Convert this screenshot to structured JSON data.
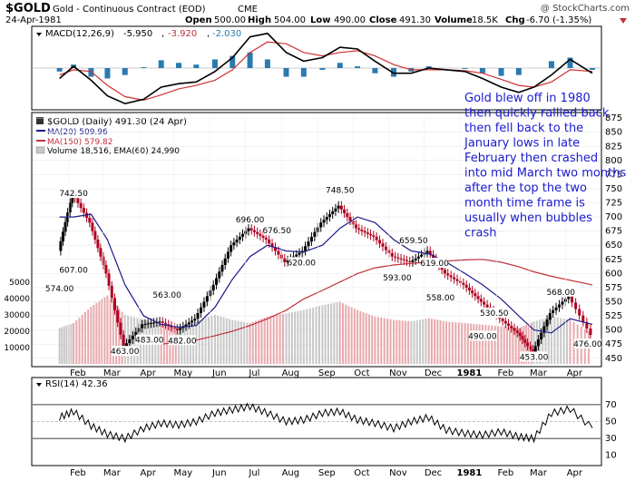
{
  "header": {
    "symbol": "$GOLD",
    "name": "Gold - Continuous Contract (EOD)",
    "exchange": "CME",
    "watermark": "@ StockCharts.com",
    "date": "24-Apr-1981",
    "open_label": "Open",
    "open": "500.00",
    "high_label": "High",
    "high": "504.00",
    "low_label": "Low",
    "low": "490.00",
    "close_label": "Close",
    "close": "491.30",
    "volume_label": "Volume",
    "volume": "18.5K",
    "chg_label": "Chg",
    "chg": "-6.70 (-1.35%)"
  },
  "colors": {
    "ma20": "#1c1c8c",
    "ma150": "#c0303a",
    "annotation": "#1a1ad0",
    "volume_up": "#c8c8c8",
    "volume_down": "#e8a9ae",
    "macd_hist": "#2a7ab0"
  },
  "chart_data": [
    {
      "type": "line",
      "name": "macd-panel",
      "label_prefix": "MACD(12,26,9)",
      "label_macd": "-5.950",
      "label_signal": "-3.920",
      "label_hist": "-2.030",
      "x": [
        "1980-01-24",
        "1980-02-05",
        "1980-02-20",
        "1980-03-05",
        "1980-03-20",
        "1980-04-05",
        "1980-04-20",
        "1980-05-05",
        "1980-05-20",
        "1980-06-05",
        "1980-06-20",
        "1980-07-05",
        "1980-07-20",
        "1980-08-05",
        "1980-08-20",
        "1980-09-05",
        "1980-09-20",
        "1980-10-05",
        "1980-10-20",
        "1980-11-05",
        "1980-11-20",
        "1980-12-05",
        "1980-12-20",
        "1981-01-05",
        "1981-01-20",
        "1981-02-05",
        "1981-02-20",
        "1981-03-05",
        "1981-03-20",
        "1981-04-05",
        "1981-04-24"
      ],
      "macd": [
        -12,
        2,
        -14,
        -32,
        -41,
        -36,
        -22,
        -18,
        -16,
        -4,
        12,
        36,
        40,
        18,
        8,
        12,
        24,
        22,
        8,
        -6,
        -6,
        0,
        -2,
        -4,
        -12,
        -22,
        -28,
        -22,
        -8,
        10,
        -5.95
      ],
      "signal": [
        -8,
        -2,
        -4,
        -20,
        -33,
        -37,
        -31,
        -24,
        -20,
        -14,
        -2,
        18,
        30,
        28,
        18,
        14,
        18,
        20,
        14,
        4,
        -2,
        -2,
        -2,
        -3,
        -6,
        -13,
        -20,
        -22,
        -16,
        -2,
        -3.92
      ],
      "hist": [
        -4,
        4,
        -10,
        -12,
        -8,
        1,
        9,
        6,
        4,
        10,
        14,
        18,
        10,
        -10,
        -10,
        -2,
        6,
        2,
        -6,
        -10,
        -4,
        2,
        0,
        -1,
        -6,
        -9,
        -8,
        0,
        8,
        12,
        -2.03
      ],
      "ylim": [
        -45,
        45
      ]
    },
    {
      "type": "line",
      "name": "price-panel",
      "title": "$GOLD (Daily) 491.30 (24 Apr)",
      "legend": [
        {
          "label": "MA(20) 509.96",
          "series": "ma20"
        },
        {
          "label": "MA(150) 579.82",
          "series": "ma150"
        },
        {
          "label": "Volume 18,516, EMA(60) 24,990",
          "series": "volume"
        }
      ],
      "x_ticks": [
        "Feb",
        "Mar",
        "Apr",
        "May",
        "Jun",
        "Jul",
        "Aug",
        "Sep",
        "Oct",
        "Nov",
        "Dec",
        "1981",
        "Feb",
        "Mar",
        "Apr"
      ],
      "y_ticks": [
        450,
        475,
        500,
        525,
        550,
        575,
        600,
        625,
        650,
        675,
        700,
        725,
        750,
        775,
        800,
        825,
        850,
        875
      ],
      "volume_ticks": [
        "5000",
        "40000",
        "30000",
        "20000",
        "10000"
      ],
      "ylim": [
        440,
        880
      ],
      "x": [
        "1980-01-24",
        "1980-02-05",
        "1980-02-20",
        "1980-03-05",
        "1980-03-20",
        "1980-04-05",
        "1980-04-20",
        "1980-05-05",
        "1980-05-20",
        "1980-06-05",
        "1980-06-20",
        "1980-07-05",
        "1980-07-20",
        "1980-08-05",
        "1980-08-20",
        "1980-09-05",
        "1980-09-20",
        "1980-10-05",
        "1980-10-20",
        "1980-11-05",
        "1980-11-20",
        "1980-12-05",
        "1980-12-20",
        "1981-01-05",
        "1981-01-20",
        "1981-02-05",
        "1981-02-20",
        "1981-03-05",
        "1981-03-20",
        "1981-04-05",
        "1981-04-24"
      ],
      "close": [
        640,
        742,
        690,
        600,
        470,
        510,
        515,
        500,
        520,
        580,
        650,
        680,
        660,
        620,
        640,
        690,
        720,
        680,
        665,
        630,
        620,
        640,
        600,
        580,
        550,
        520,
        495,
        460,
        530,
        560,
        491.3
      ],
      "ma20": [
        700,
        700,
        705,
        660,
        580,
        525,
        510,
        505,
        508,
        540,
        590,
        630,
        650,
        640,
        638,
        650,
        680,
        700,
        690,
        660,
        640,
        635,
        620,
        600,
        580,
        555,
        525,
        500,
        495,
        520,
        509.96
      ],
      "ma150": [
        null,
        null,
        null,
        null,
        null,
        null,
        475,
        478,
        482,
        490,
        498,
        508,
        520,
        535,
        555,
        570,
        585,
        600,
        610,
        615,
        618,
        620,
        622,
        624,
        625,
        620,
        612,
        603,
        595,
        588,
        579.82
      ],
      "volume": [
        22000,
        25000,
        35000,
        42000,
        30000,
        27000,
        24000,
        22000,
        26000,
        30000,
        27000,
        25000,
        29000,
        31000,
        33000,
        36000,
        38000,
        33000,
        29000,
        27000,
        26000,
        28000,
        26000,
        25000,
        24000,
        23000,
        22000,
        26000,
        29000,
        27000,
        18516
      ],
      "annotations": [
        {
          "label": "574.00",
          "x": "1980-01-24",
          "value": 574
        },
        {
          "label": "742.50",
          "x": "1980-02-05",
          "value": 742.5
        },
        {
          "label": "607.00",
          "x": "1980-02-05",
          "value": 607
        },
        {
          "label": "563.00",
          "x": "1980-04-25",
          "value": 563
        },
        {
          "label": "483.00",
          "x": "1980-04-10",
          "value": 483
        },
        {
          "label": "463.00",
          "x": "1980-03-20",
          "value": 463
        },
        {
          "label": "482.00",
          "x": "1980-05-08",
          "value": 482
        },
        {
          "label": "696.00",
          "x": "1980-07-05",
          "value": 696
        },
        {
          "label": "676.50",
          "x": "1980-07-28",
          "value": 676.5
        },
        {
          "label": "620.00",
          "x": "1980-08-18",
          "value": 620
        },
        {
          "label": "748.50",
          "x": "1980-09-20",
          "value": 748.5
        },
        {
          "label": "659.50",
          "x": "1980-11-22",
          "value": 659.5
        },
        {
          "label": "593.00",
          "x": "1980-11-08",
          "value": 593
        },
        {
          "label": "619.00",
          "x": "1980-12-10",
          "value": 619
        },
        {
          "label": "558.00",
          "x": "1980-12-15",
          "value": 558
        },
        {
          "label": "530.50",
          "x": "1981-01-30",
          "value": 530.5
        },
        {
          "label": "490.00",
          "x": "1981-01-20",
          "value": 490
        },
        {
          "label": "568.00",
          "x": "1981-03-28",
          "value": 568
        },
        {
          "label": "453.00",
          "x": "1981-03-05",
          "value": 453
        },
        {
          "label": "476.00",
          "x": "1981-04-20",
          "value": 476
        }
      ],
      "note": "Gold blew off in 1980 then quickly rallied back then fell back to the January lows in late February then crashed into mid March two months after the top the two month time frame is usually when bubbles crash"
    },
    {
      "type": "line",
      "name": "rsi-panel",
      "label": "RSI(14) 42.36",
      "y_ticks": [
        70,
        50,
        30,
        10
      ],
      "ylim": [
        0,
        100
      ],
      "x_ticks": [
        "Feb",
        "Mar",
        "Apr",
        "May",
        "Jun",
        "Jul",
        "Aug",
        "Sep",
        "Oct",
        "Nov",
        "Dec",
        "1981",
        "Feb",
        "Mar",
        "Apr"
      ],
      "x": [
        "1980-01-24",
        "1980-02-05",
        "1980-02-20",
        "1980-03-05",
        "1980-03-20",
        "1980-04-05",
        "1980-04-20",
        "1980-05-05",
        "1980-05-20",
        "1980-06-05",
        "1980-06-20",
        "1980-07-05",
        "1980-07-20",
        "1980-08-05",
        "1980-08-20",
        "1980-09-05",
        "1980-09-20",
        "1980-10-05",
        "1980-10-20",
        "1980-11-05",
        "1980-11-20",
        "1980-12-05",
        "1980-12-20",
        "1981-01-05",
        "1981-01-20",
        "1981-02-05",
        "1981-02-20",
        "1981-03-05",
        "1981-03-20",
        "1981-04-05",
        "1981-04-24"
      ],
      "values": [
        55,
        62,
        45,
        35,
        30,
        42,
        48,
        46,
        50,
        60,
        64,
        68,
        60,
        50,
        52,
        60,
        62,
        52,
        48,
        42,
        50,
        55,
        40,
        36,
        34,
        38,
        32,
        30,
        60,
        65,
        42.36
      ]
    }
  ]
}
